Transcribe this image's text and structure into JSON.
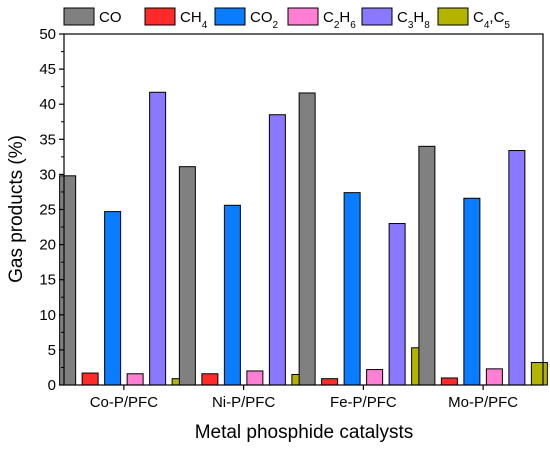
{
  "chart_data": {
    "type": "bar",
    "xlabel": "Metal phosphide catalysts",
    "ylabel": "Gas products (%)",
    "ylim": [
      0,
      50
    ],
    "yticks": [
      0,
      5,
      10,
      15,
      20,
      25,
      30,
      35,
      40,
      45,
      50
    ],
    "categories": [
      "Co-P/PFC",
      "Ni-P/PFC",
      "Fe-P/PFC",
      "Mo-P/PFC"
    ],
    "legend_placement": "top",
    "grid": false,
    "series": [
      {
        "name": "CO",
        "color": "#808080",
        "values": [
          29.8,
          31.1,
          41.6,
          34.0
        ]
      },
      {
        "name": "CH4",
        "color": "#ff2a2a",
        "values": [
          1.7,
          1.6,
          0.9,
          1.0
        ]
      },
      {
        "name": "CO2",
        "color": "#0a7cff",
        "values": [
          24.7,
          25.6,
          27.4,
          26.6
        ]
      },
      {
        "name": "C2H6",
        "color": "#ff7fd4",
        "values": [
          1.6,
          2.0,
          2.2,
          2.3
        ]
      },
      {
        "name": "C3H8",
        "color": "#8a78ff",
        "values": [
          41.7,
          38.5,
          23.0,
          33.4
        ]
      },
      {
        "name": "C4,C5",
        "color": "#b4b400",
        "values": [
          0.9,
          1.5,
          5.3,
          3.2
        ]
      }
    ]
  }
}
